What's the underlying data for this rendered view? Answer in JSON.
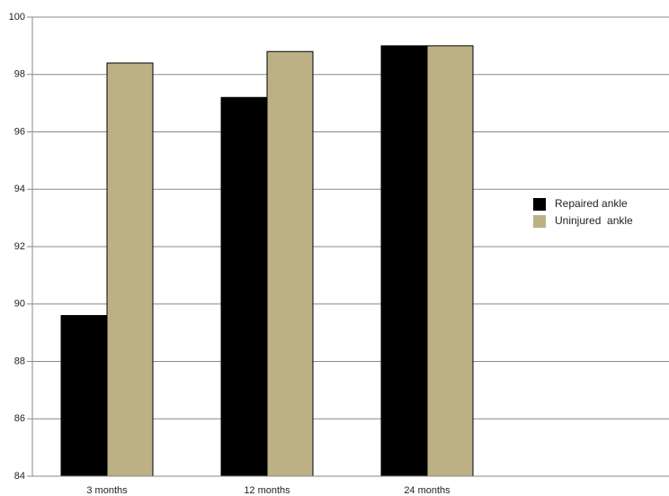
{
  "chart_data": {
    "type": "bar",
    "categories": [
      "3 months",
      "12 months",
      "24 months"
    ],
    "series": [
      {
        "name": "Repaired ankle",
        "color": "#000000",
        "values": [
          89.6,
          97.2,
          99.0
        ]
      },
      {
        "name": "Uninjured  ankle",
        "color": "#bcb185",
        "values": [
          98.4,
          98.8,
          99.0
        ]
      }
    ],
    "ylim": [
      84,
      100
    ],
    "yticks": [
      84,
      86,
      88,
      90,
      92,
      94,
      96,
      98,
      100
    ],
    "grid": true,
    "legend": "right"
  }
}
